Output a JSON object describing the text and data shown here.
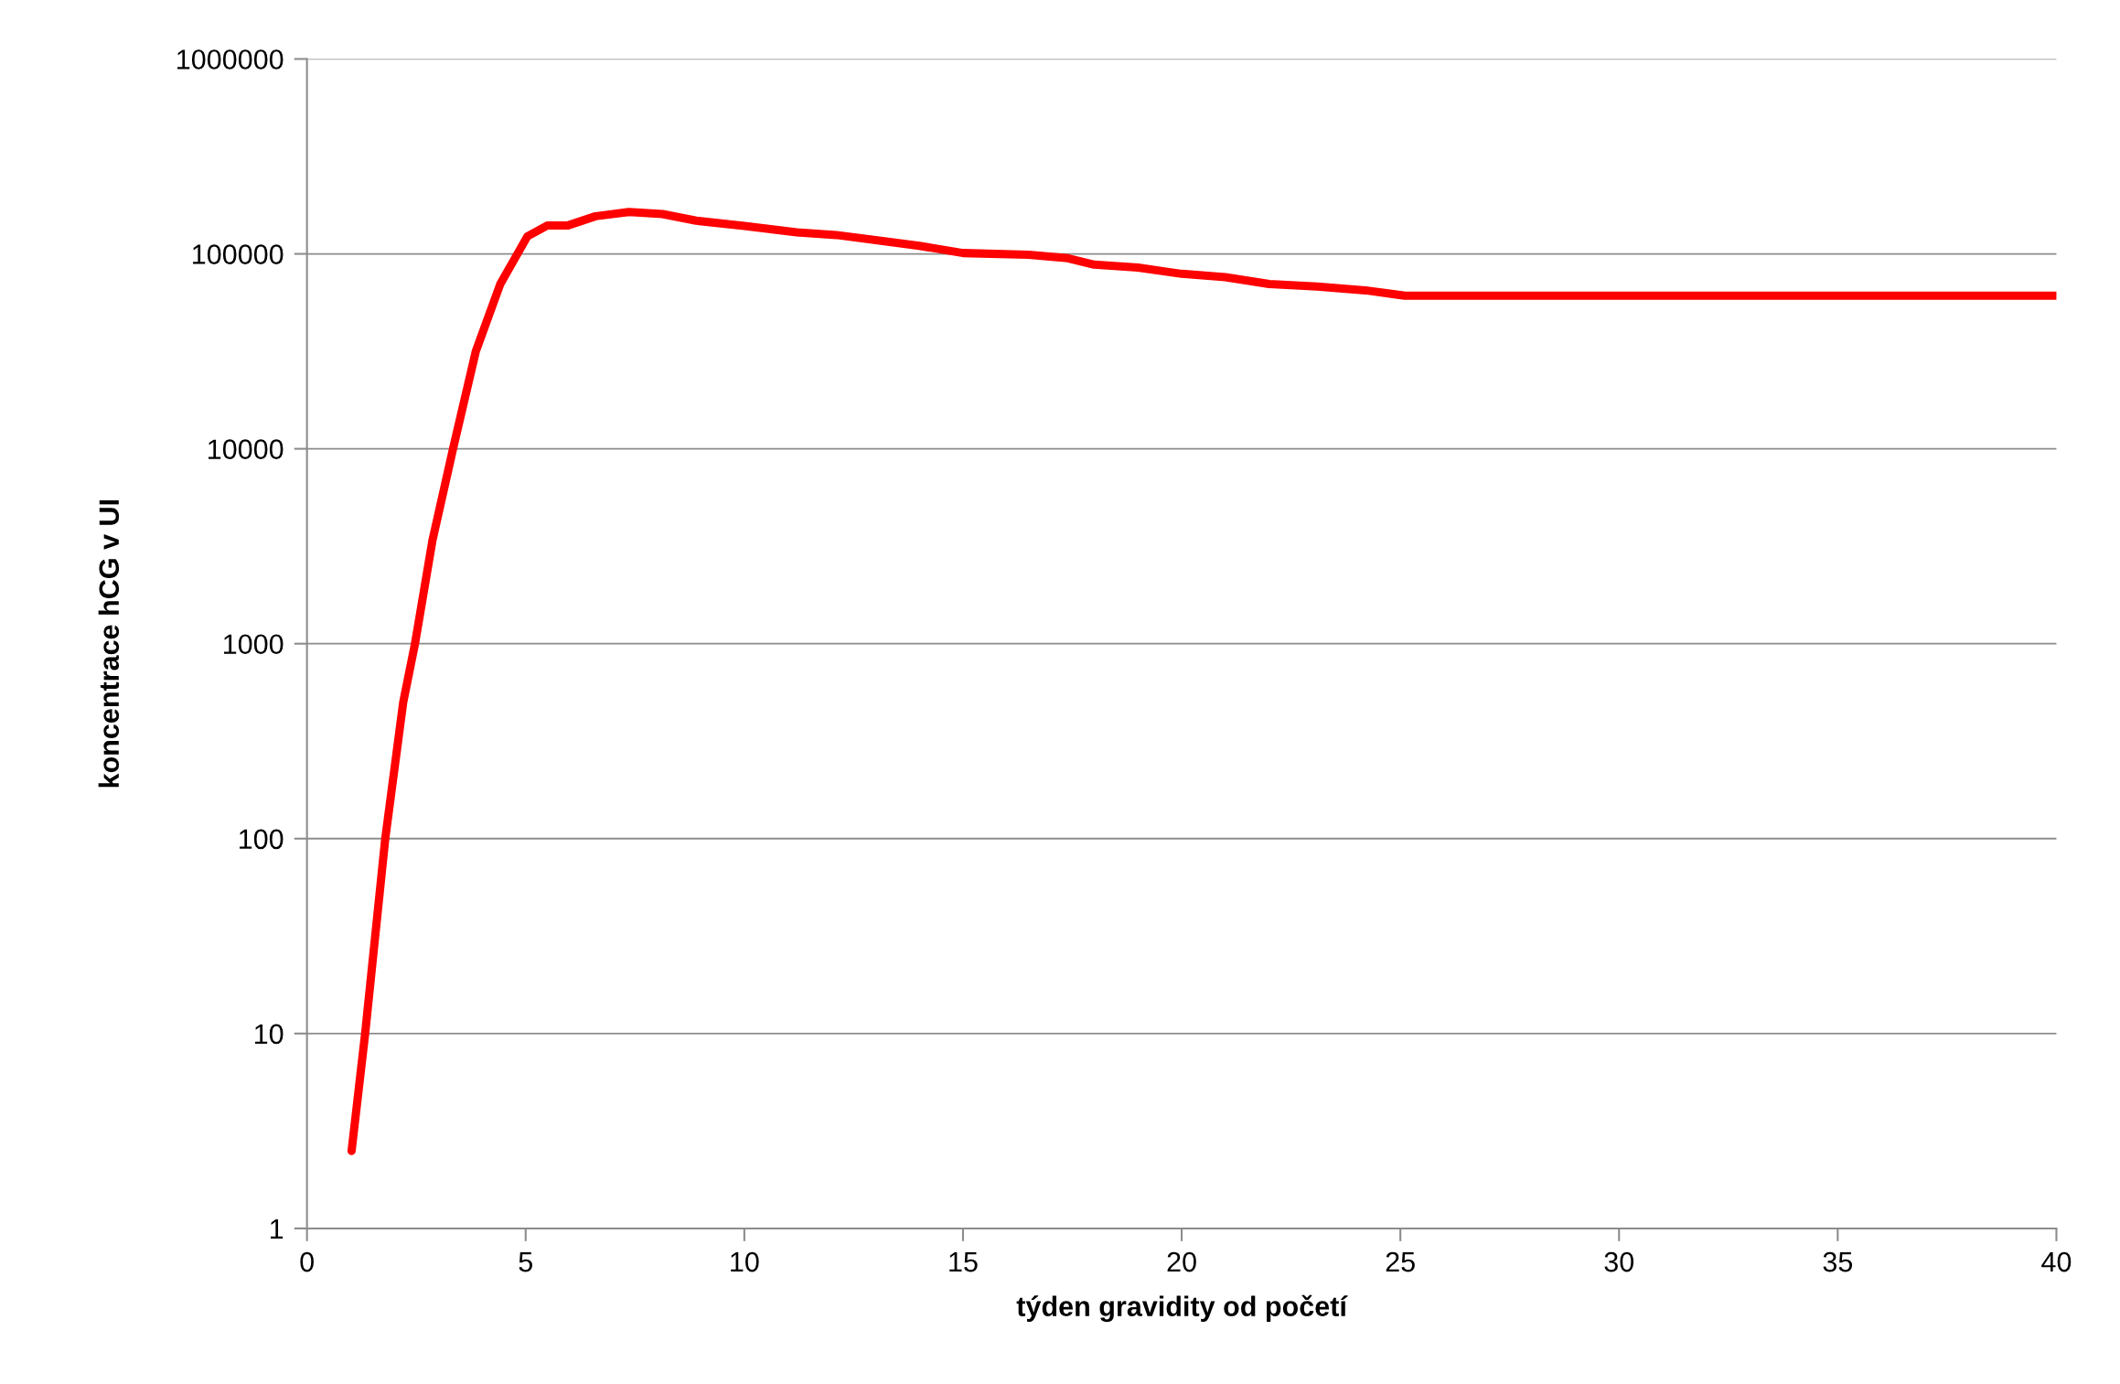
{
  "chart_data": {
    "type": "line",
    "xlabel": "týden gravidity od početí",
    "ylabel": "koncentrace hCG v UI",
    "x": [
      1.02,
      1.33,
      1.79,
      2.2,
      2.47,
      2.87,
      3.34,
      3.86,
      4.42,
      5.04,
      5.5,
      5.97,
      6.6,
      7.36,
      8.13,
      8.9,
      10,
      11.2,
      12.1,
      14,
      15,
      16.5,
      17.4,
      18,
      19,
      20,
      21,
      22,
      23.1,
      24.2,
      25.1,
      25.7,
      40
    ],
    "series": [
      {
        "color": "#ff0000",
        "values": [
          2.5,
          10,
          100,
          500,
          1000,
          3400,
          10000,
          31600,
          70000,
          123000,
          140000,
          140000,
          156000,
          164000,
          160000,
          148000,
          139000,
          129000,
          125000,
          110000,
          101000,
          99000,
          95000,
          88000,
          85000,
          79000,
          76000,
          70000,
          68000,
          65000,
          61000,
          61000,
          61000
        ]
      }
    ],
    "log": "y",
    "xlim": [
      0,
      40
    ],
    "xticks": [
      0,
      5,
      10,
      15,
      20,
      25,
      30,
      35,
      40
    ],
    "ylim": [
      1,
      1000000
    ],
    "yticks": [
      1,
      10,
      100,
      1000,
      10000,
      100000,
      1000000
    ],
    "grid": "y",
    "legend": false,
    "marker": "none",
    "line_style": "solid"
  }
}
